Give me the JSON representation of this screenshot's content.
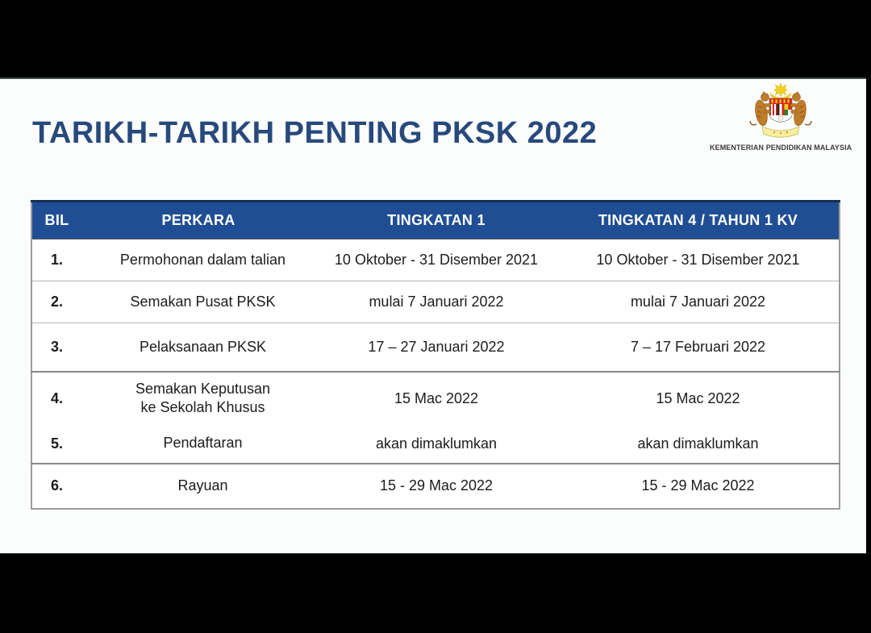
{
  "slide": {
    "title": "TARIKH-TARIKH PENTING PKSK 2022",
    "ministry_name": "KEMENTERIAN PENDIDIKAN MALAYSIA",
    "colors": {
      "header_bg": "#1f4e94",
      "title_text": "#27497c",
      "letterbox": "#000000",
      "separator_light": "#b5b5b5",
      "separator_dark": "#888888"
    }
  },
  "table": {
    "columns": [
      "BIL",
      "PERKARA",
      "TINGKATAN 1",
      "TINGKATAN 4 / TAHUN 1 KV"
    ],
    "rows": [
      {
        "bil": "1.",
        "perkara": "Permohonan dalam talian",
        "tingkatan1": "10 Oktober - 31 Disember 2021",
        "tingkatan4": "10 Oktober - 31 Disember 2021"
      },
      {
        "bil": "2.",
        "perkara": "Semakan Pusat PKSK",
        "tingkatan1": "mulai 7 Januari 2022",
        "tingkatan4": "mulai 7 Januari 2022"
      },
      {
        "bil": "3.",
        "perkara": "Pelaksanaan PKSK",
        "tingkatan1": "17 – 27 Januari 2022",
        "tingkatan4": "7 – 17 Februari 2022"
      },
      {
        "bil": "4.",
        "perkara": "Semakan Keputusan\nke Sekolah Khusus",
        "tingkatan1": "15 Mac 2022",
        "tingkatan4": "15 Mac 2022"
      },
      {
        "bil": "5.",
        "perkara": "Pendaftaran",
        "tingkatan1": "akan dimaklumkan",
        "tingkatan4": "akan dimaklumkan"
      },
      {
        "bil": "6.",
        "perkara": "Rayuan",
        "tingkatan1": "15 - 29 Mac 2022",
        "tingkatan4": "15 - 29 Mac 2022"
      }
    ]
  }
}
